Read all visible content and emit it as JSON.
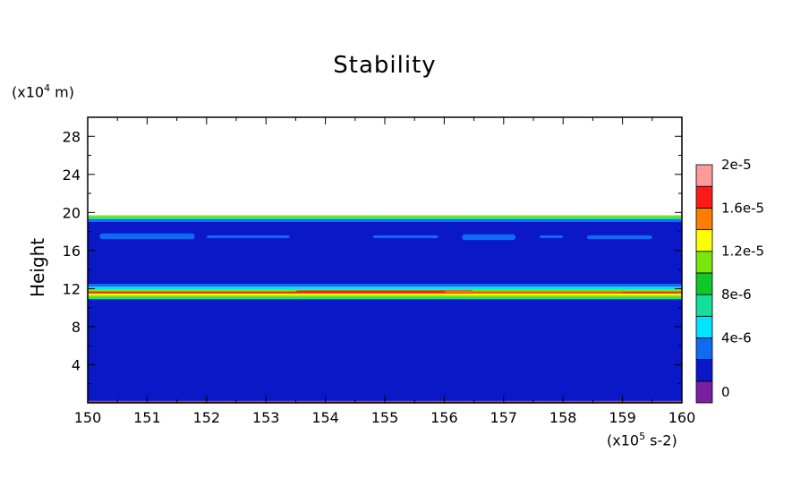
{
  "chart_data": {
    "type": "heatmap",
    "title": "Stability",
    "ylabel": "Height",
    "y_units": "(x10",
    "y_units_exp": "4",
    "y_units_tail": " m)",
    "x_units": "(x10",
    "x_units_exp": "5",
    "x_units_tail": " s-2)",
    "xlim": [
      150,
      160
    ],
    "ylim": [
      0,
      30
    ],
    "x_ticks": [
      "150",
      "151",
      "152",
      "153",
      "154",
      "155",
      "156",
      "157",
      "158",
      "159",
      "160"
    ],
    "y_ticks": [
      "4",
      "8",
      "12",
      "16",
      "20",
      "24",
      "28"
    ],
    "grid": false,
    "colorbar": {
      "levels": [
        0,
        2e-06,
        4e-06,
        6e-06,
        8e-06,
        1e-05,
        1.2e-05,
        1.4e-05,
        1.6e-05,
        1.8e-05,
        2e-05
      ],
      "colors": [
        "#7a1fa2",
        "#0a18c8",
        "#0f6cf2",
        "#00e4ff",
        "#13e09a",
        "#10c82a",
        "#78e60a",
        "#ffff00",
        "#ff7d00",
        "#ff1a1a",
        "#ff9a9a"
      ],
      "labels": [
        "0",
        "4e-6",
        "8e-6",
        "1.2e-5",
        "1.6e-5",
        "2e-5"
      ]
    },
    "bands": [
      {
        "y0": 0,
        "y1": 0.2,
        "level": 9
      },
      {
        "y0": 0.2,
        "y1": 10.9,
        "level": 1
      },
      {
        "y0": 10.9,
        "y1": 11.1,
        "level": 4
      },
      {
        "y0": 11.1,
        "y1": 11.3,
        "level": 6
      },
      {
        "y0": 11.3,
        "y1": 11.5,
        "level": 7
      },
      {
        "y0": 11.5,
        "y1": 11.7,
        "level": 9
      },
      {
        "y0": 11.7,
        "y1": 11.9,
        "level": 6
      },
      {
        "y0": 11.9,
        "y1": 12.2,
        "level": 3
      },
      {
        "y0": 12.2,
        "y1": 12.5,
        "level": 2
      },
      {
        "y0": 12.5,
        "y1": 19.0,
        "level": 1
      },
      {
        "y0": 19.0,
        "y1": 19.3,
        "level": 2
      },
      {
        "y0": 19.3,
        "y1": 19.5,
        "level": 4
      },
      {
        "y0": 19.5,
        "y1": 19.7,
        "level": 6
      },
      {
        "y0": 19.7,
        "y1": 30,
        "level": -1
      }
    ],
    "patches": [
      {
        "x0": 150.2,
        "x1": 151.8,
        "y0": 17.2,
        "y1": 17.8,
        "level": 2
      },
      {
        "x0": 152.0,
        "x1": 153.4,
        "y0": 17.3,
        "y1": 17.6,
        "level": 2
      },
      {
        "x0": 154.8,
        "x1": 155.9,
        "y0": 17.3,
        "y1": 17.6,
        "level": 2
      },
      {
        "x0": 156.3,
        "x1": 157.2,
        "y0": 17.1,
        "y1": 17.7,
        "level": 2
      },
      {
        "x0": 157.6,
        "x1": 158.0,
        "y0": 17.3,
        "y1": 17.6,
        "level": 2
      },
      {
        "x0": 158.4,
        "x1": 159.5,
        "y0": 17.2,
        "y1": 17.6,
        "level": 2
      },
      {
        "x0": 153.5,
        "x1": 156.5,
        "y0": 11.6,
        "y1": 11.8,
        "level": 9
      },
      {
        "x0": 156.0,
        "x1": 159.0,
        "y0": 11.6,
        "y1": 11.75,
        "level": 8
      }
    ]
  }
}
